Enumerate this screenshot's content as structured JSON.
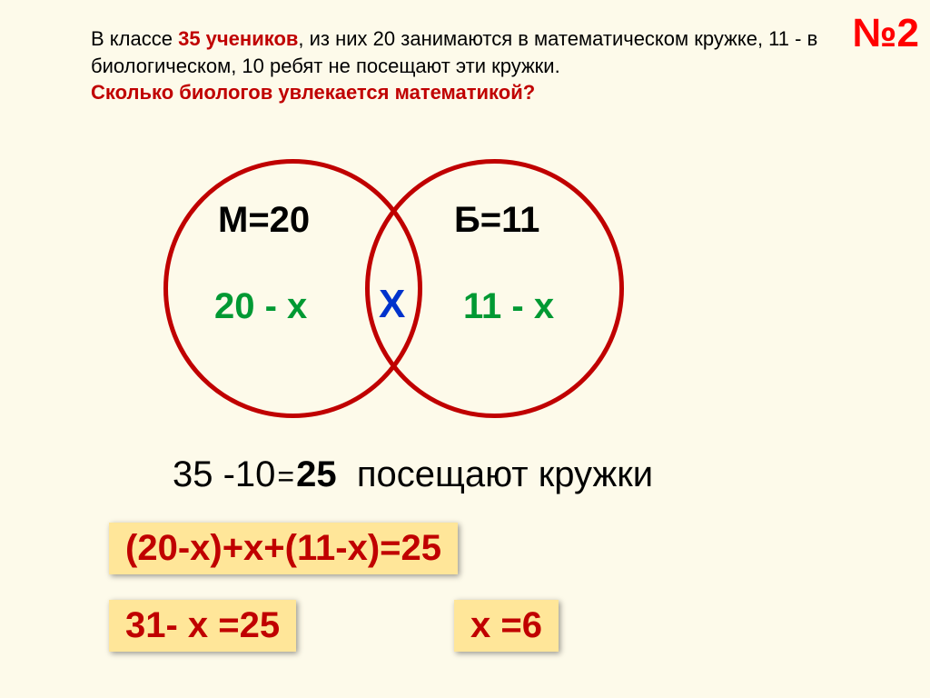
{
  "slide_number": "№2",
  "problem": {
    "prefix": "В классе ",
    "highlight": "35 учеников",
    "middle": ", из них 20 занимаются в математическом кружке, 11 - в биологическом, 10 ребят не посещают эти кружки.",
    "question": "Сколько биологов увлекается математикой?"
  },
  "venn": {
    "left_label": "М=20",
    "right_label": "Б=11",
    "left_value": "20 - х",
    "right_value": "11 - х",
    "intersection": "Х",
    "circle_color": "#c00000",
    "left_text_color": "#009933",
    "right_text_color": "#009933",
    "intersection_color": "#0033cc",
    "label_color": "#000000"
  },
  "calculations": {
    "line1_left": "35 -10",
    "line1_result": "25",
    "line1_right": " посещают кружки",
    "eq1": "(20-х)+х+(11-х)=25",
    "eq2": "31- х =25",
    "eq3": "х =6"
  },
  "colors": {
    "background": "#fdfaea",
    "highlight_box_bg": "#ffe699",
    "highlight_box_text": "#c00000",
    "problem_highlight": "#c00000"
  }
}
